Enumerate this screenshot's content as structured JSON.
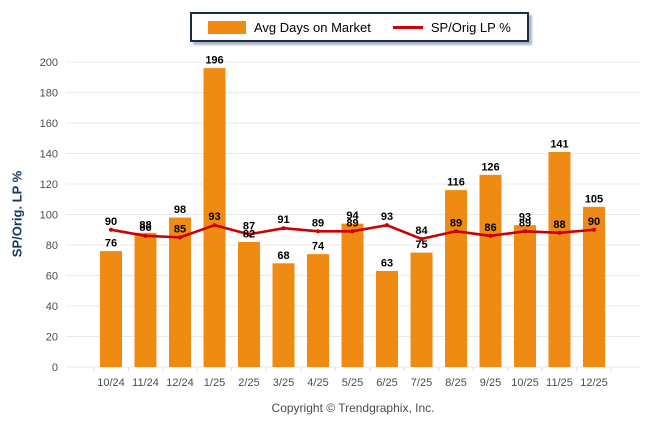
{
  "legend": {
    "bar_label": "Avg Days on Market",
    "line_label": "SP/Orig LP %"
  },
  "y_axis": {
    "title": "SP/Orig. LP %",
    "ticks": [
      0,
      20,
      40,
      60,
      80,
      100,
      120,
      140,
      160,
      180,
      200
    ]
  },
  "footer": {
    "copyright": "Copyright © Trendgraphix, Inc."
  },
  "colors": {
    "bar": "#ef8b13",
    "line": "#cc0000",
    "axis_title": "#17365d",
    "tick_text": "#4d4d4d",
    "grid": "#e8e8e8",
    "data_label": "#000000"
  },
  "chart_data": {
    "type": "bar",
    "categories": [
      "10/24",
      "11/24",
      "12/24",
      "1/25",
      "2/25",
      "3/25",
      "4/25",
      "5/25",
      "6/25",
      "7/25",
      "8/25",
      "9/25",
      "10/25",
      "11/25",
      "12/25"
    ],
    "series": [
      {
        "name": "Avg Days on Market",
        "type": "bar",
        "color": "#ef8b13",
        "values": [
          76,
          88,
          98,
          196,
          82,
          68,
          74,
          94,
          63,
          75,
          116,
          126,
          93,
          141,
          105
        ]
      },
      {
        "name": "SP/Orig LP %",
        "type": "line",
        "color": "#cc0000",
        "values": [
          90,
          86,
          85,
          93,
          87,
          91,
          89,
          89,
          93,
          84,
          89,
          86,
          89,
          88,
          90
        ]
      }
    ],
    "title": "",
    "xlabel": "",
    "ylabel": "SP/Orig. LP %",
    "ylim": [
      0,
      200
    ],
    "grid": true,
    "legend_position": "top-center",
    "data_labels": true
  }
}
